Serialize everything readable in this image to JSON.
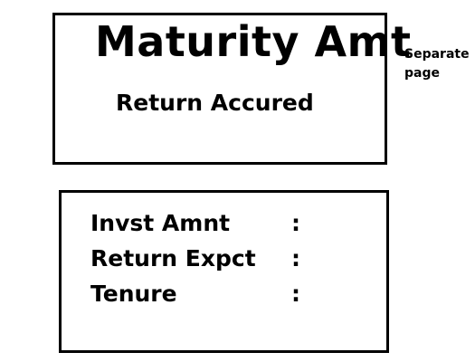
{
  "summary_card": {
    "title": "Maturity Amt",
    "subtitle": "Return Accured"
  },
  "side_note": {
    "line1": "Separate",
    "line2": "page"
  },
  "details_card": {
    "fields": [
      {
        "label": "Invst Amnt",
        "separator": ":"
      },
      {
        "label": "Return Expct",
        "separator": ":"
      },
      {
        "label": "Tenure",
        "separator": ":"
      }
    ]
  }
}
